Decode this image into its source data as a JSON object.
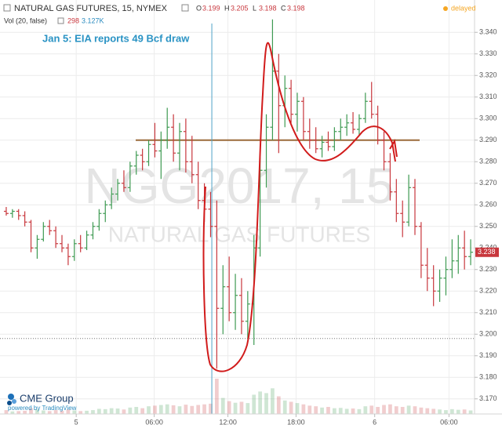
{
  "chart_data": {
    "type": "ohlc",
    "symbol": "NATURAL GAS FUTURES, 15, NYMEX",
    "ohlc_header": {
      "labels": [
        "O",
        "H",
        "L",
        "C"
      ],
      "values": [
        3.199,
        3.205,
        3.198,
        3.198
      ]
    },
    "volume_header": {
      "label": "Vol (20, false)",
      "value": 298,
      "ma": {
        "value": 3127,
        "label": "3.127K"
      }
    },
    "status": "delayed",
    "annotation": "Jan 5: EIA reports 49 Bcf draw",
    "watermark": [
      "NGG2017, 15",
      "NATURAL GAS FUTURES"
    ],
    "brand": {
      "name": "CME Group",
      "powered": "powered by TradingView"
    },
    "up_color": "#3e9a52",
    "down_color": "#c8373d",
    "grid": true,
    "last_price": 3.238,
    "horizontal_line": {
      "value": 3.29,
      "color": "#9c6b3a"
    },
    "dotted_line": 3.198,
    "vertical_line_x": 33.2,
    "xlim": [
      -0.5,
      75.5
    ],
    "ylim": [
      3.163,
      3.355
    ],
    "xticks": [
      {
        "value": 11.3,
        "label": "5"
      },
      {
        "value": 23.9,
        "label": "06:00"
      },
      {
        "value": 35.8,
        "label": "12:00"
      },
      {
        "value": 46.8,
        "label": "18:00"
      },
      {
        "value": 59.5,
        "label": "6"
      },
      {
        "value": 71.5,
        "label": "06:00"
      }
    ],
    "yticks": [
      {
        "value": 3.17,
        "label": "3.170"
      },
      {
        "value": 3.18,
        "label": "3.180"
      },
      {
        "value": 3.19,
        "label": "3.190"
      },
      {
        "value": 3.2,
        "label": "3.200"
      },
      {
        "value": 3.21,
        "label": "3.210"
      },
      {
        "value": 3.22,
        "label": "3.220"
      },
      {
        "value": 3.23,
        "label": "3.230"
      },
      {
        "value": 3.24,
        "label": "3.240"
      },
      {
        "value": 3.25,
        "label": "3.250"
      },
      {
        "value": 3.26,
        "label": "3.260"
      },
      {
        "value": 3.27,
        "label": "3.270"
      },
      {
        "value": 3.28,
        "label": "3.280"
      },
      {
        "value": 3.29,
        "label": "3.290"
      },
      {
        "value": 3.3,
        "label": "3.300"
      },
      {
        "value": 3.31,
        "label": "3.310"
      },
      {
        "value": 3.32,
        "label": "3.320"
      },
      {
        "value": 3.33,
        "label": "3.330"
      },
      {
        "value": 3.34,
        "label": "3.340"
      }
    ],
    "x": [
      0,
      1,
      2,
      3,
      4,
      5,
      6,
      7,
      8,
      9,
      10,
      11,
      12,
      13,
      14,
      15,
      16,
      17,
      18,
      19,
      20,
      21,
      22,
      23,
      24,
      25,
      26,
      27,
      28,
      29,
      30,
      31,
      32,
      33,
      34,
      35,
      36,
      37,
      38,
      39,
      40,
      41,
      42,
      43,
      44,
      45,
      46,
      47,
      48,
      49,
      50,
      51,
      52,
      53,
      54,
      55,
      56,
      57,
      58,
      59,
      60,
      61,
      62,
      63,
      64,
      65,
      66,
      67,
      68,
      69,
      70,
      71,
      72,
      73,
      74,
      75
    ],
    "ohlc": [
      [
        3.257,
        3.259,
        3.255,
        3.256
      ],
      [
        3.256,
        3.258,
        3.254,
        3.257
      ],
      [
        3.257,
        3.258,
        3.253,
        3.255
      ],
      [
        3.255,
        3.257,
        3.25,
        3.252
      ],
      [
        3.252,
        3.253,
        3.238,
        3.24
      ],
      [
        3.24,
        3.246,
        3.235,
        3.244
      ],
      [
        3.244,
        3.252,
        3.243,
        3.25
      ],
      [
        3.25,
        3.253,
        3.246,
        3.248
      ],
      [
        3.248,
        3.25,
        3.24,
        3.242
      ],
      [
        3.242,
        3.246,
        3.238,
        3.24
      ],
      [
        3.24,
        3.242,
        3.232,
        3.236
      ],
      [
        3.236,
        3.244,
        3.234,
        3.242
      ],
      [
        3.242,
        3.246,
        3.238,
        3.24
      ],
      [
        3.24,
        3.248,
        3.239,
        3.246
      ],
      [
        3.246,
        3.252,
        3.244,
        3.25
      ],
      [
        3.25,
        3.258,
        3.248,
        3.256
      ],
      [
        3.256,
        3.262,
        3.252,
        3.26
      ],
      [
        3.26,
        3.268,
        3.258,
        3.265
      ],
      [
        3.265,
        3.272,
        3.262,
        3.27
      ],
      [
        3.27,
        3.276,
        3.266,
        3.268
      ],
      [
        3.268,
        3.28,
        3.266,
        3.278
      ],
      [
        3.278,
        3.285,
        3.274,
        3.283
      ],
      [
        3.283,
        3.286,
        3.276,
        3.28
      ],
      [
        3.28,
        3.29,
        3.278,
        3.288
      ],
      [
        3.288,
        3.298,
        3.282,
        3.285
      ],
      [
        3.285,
        3.294,
        3.272,
        3.29
      ],
      [
        3.29,
        3.305,
        3.286,
        3.296
      ],
      [
        3.296,
        3.302,
        3.28,
        3.284
      ],
      [
        3.284,
        3.298,
        3.276,
        3.294
      ],
      [
        3.294,
        3.3,
        3.275,
        3.28
      ],
      [
        3.28,
        3.292,
        3.27,
        3.274
      ],
      [
        3.274,
        3.28,
        3.258,
        3.262
      ],
      [
        3.262,
        3.27,
        3.252,
        3.258
      ],
      [
        3.258,
        3.266,
        3.245,
        3.25
      ],
      [
        3.25,
        3.262,
        3.184,
        3.212
      ],
      [
        3.212,
        3.232,
        3.2,
        3.222
      ],
      [
        3.222,
        3.236,
        3.206,
        3.21
      ],
      [
        3.21,
        3.228,
        3.202,
        3.218
      ],
      [
        3.218,
        3.226,
        3.2,
        3.206
      ],
      [
        3.206,
        3.22,
        3.198,
        3.214
      ],
      [
        3.214,
        3.246,
        3.195,
        3.24
      ],
      [
        3.24,
        3.282,
        3.236,
        3.276
      ],
      [
        3.276,
        3.302,
        3.268,
        3.296
      ],
      [
        3.296,
        3.346,
        3.29,
        3.322
      ],
      [
        3.322,
        3.33,
        3.284,
        3.306
      ],
      [
        3.306,
        3.32,
        3.296,
        3.314
      ],
      [
        3.314,
        3.318,
        3.298,
        3.302
      ],
      [
        3.302,
        3.312,
        3.294,
        3.308
      ],
      [
        3.308,
        3.31,
        3.29,
        3.294
      ],
      [
        3.294,
        3.3,
        3.286,
        3.29
      ],
      [
        3.29,
        3.296,
        3.284,
        3.286
      ],
      [
        3.286,
        3.292,
        3.282,
        3.289
      ],
      [
        3.289,
        3.294,
        3.285,
        3.287
      ],
      [
        3.287,
        3.296,
        3.285,
        3.294
      ],
      [
        3.294,
        3.3,
        3.29,
        3.296
      ],
      [
        3.296,
        3.302,
        3.292,
        3.298
      ],
      [
        3.298,
        3.303,
        3.293,
        3.295
      ],
      [
        3.295,
        3.302,
        3.292,
        3.3
      ],
      [
        3.3,
        3.312,
        3.298,
        3.308
      ],
      [
        3.308,
        3.317,
        3.3,
        3.302
      ],
      [
        3.302,
        3.306,
        3.288,
        3.29
      ],
      [
        3.29,
        3.294,
        3.276,
        3.28
      ],
      [
        3.28,
        3.284,
        3.262,
        3.266
      ],
      [
        3.266,
        3.272,
        3.252,
        3.256
      ],
      [
        3.256,
        3.262,
        3.245,
        3.252
      ],
      [
        3.252,
        3.274,
        3.25,
        3.268
      ],
      [
        3.268,
        3.272,
        3.246,
        3.25
      ],
      [
        3.25,
        3.252,
        3.226,
        3.232
      ],
      [
        3.232,
        3.24,
        3.22,
        3.226
      ],
      [
        3.226,
        3.232,
        3.213,
        3.22
      ],
      [
        3.22,
        3.23,
        3.215,
        3.226
      ],
      [
        3.226,
        3.236,
        3.218,
        3.23
      ],
      [
        3.23,
        3.244,
        3.226,
        3.234
      ],
      [
        3.234,
        3.246,
        3.228,
        3.24
      ],
      [
        3.24,
        3.248,
        3.23,
        3.236
      ],
      [
        3.236,
        3.244,
        3.232,
        3.238
      ]
    ],
    "volume": [
      1.2,
      0.8,
      0.9,
      1,
      1.8,
      1.5,
      1.1,
      0.9,
      1.2,
      1,
      1.4,
      1.1,
      0.9,
      1,
      1.2,
      1.6,
      1.5,
      1.8,
      1.7,
      1.4,
      2,
      2.2,
      1.8,
      2.4,
      2.6,
      2.8,
      3,
      2.7,
      2.4,
      2.9,
      2.5,
      2.8,
      3,
      3.2,
      11,
      5,
      4,
      3.5,
      3.8,
      3.4,
      6,
      7,
      6.5,
      8,
      5.5,
      4.2,
      3.8,
      3.4,
      3,
      2.6,
      2.4,
      2,
      2.2,
      1.8,
      1.9,
      1.6,
      1.7,
      1.5,
      2.4,
      2.6,
      2.2,
      2.8,
      3,
      2.4,
      2.2,
      2.6,
      2.4,
      2,
      1.8,
      1.6,
      1.4,
      1.2,
      1.5,
      1.3,
      1.4,
      1.1
    ]
  }
}
